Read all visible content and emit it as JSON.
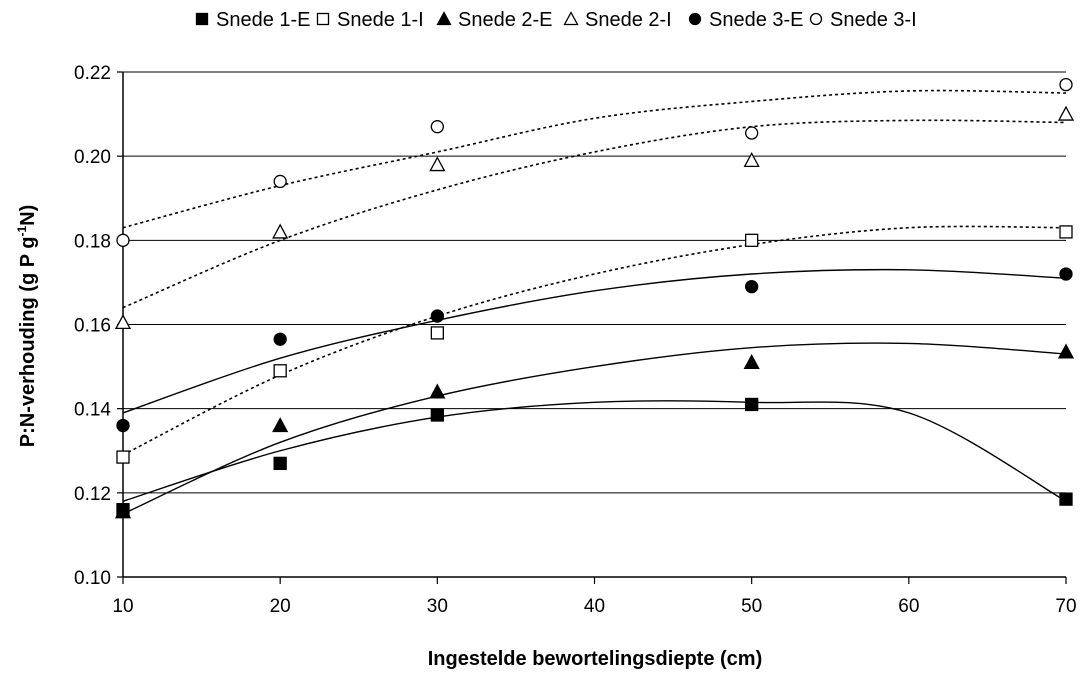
{
  "chart_data": {
    "type": "scatter",
    "title": "",
    "xlabel": "Ingestelde bewortelingsdiepte (cm)",
    "ylabel_parts": {
      "main": "P:N-verhouding (g P g",
      "sup": "-1",
      "end": "N)"
    },
    "xlim": [
      10,
      70
    ],
    "ylim": [
      0.1,
      0.22
    ],
    "x_ticks": [
      "10",
      "20",
      "30",
      "40",
      "50",
      "60",
      "70"
    ],
    "y_ticks": [
      "0.10",
      "0.12",
      "0.14",
      "0.16",
      "0.18",
      "0.20",
      "0.22"
    ],
    "grid": "horizontal",
    "legend_position": "top",
    "x": [
      10,
      20,
      30,
      50,
      70
    ],
    "series": [
      {
        "name": "Snede 1-E",
        "marker": "square-filled",
        "trend": "solid",
        "values": [
          0.116,
          0.127,
          0.1385,
          0.141,
          0.1185
        ],
        "trend_values": [
          0.118,
          0.13,
          0.138,
          0.1415,
          0.1415,
          0.139,
          0.118
        ]
      },
      {
        "name": "Snede 1-I",
        "marker": "square-open",
        "trend": "dotted",
        "values": [
          0.1285,
          0.149,
          0.158,
          0.18,
          0.182
        ],
        "trend_values": [
          0.129,
          0.148,
          0.162,
          0.172,
          0.179,
          0.183,
          0.183
        ]
      },
      {
        "name": "Snede 2-E",
        "marker": "triangle-filled",
        "trend": "solid",
        "values": [
          0.1155,
          0.136,
          0.144,
          0.151,
          0.1535
        ],
        "trend_values": [
          0.115,
          0.132,
          0.143,
          0.15,
          0.1545,
          0.1555,
          0.153
        ]
      },
      {
        "name": "Snede 2-I",
        "marker": "triangle-open",
        "trend": "dotted",
        "values": [
          0.1605,
          0.182,
          0.198,
          0.199,
          0.21
        ],
        "trend_values": [
          0.164,
          0.18,
          0.192,
          0.201,
          0.207,
          0.2085,
          0.208
        ]
      },
      {
        "name": "Snede 3-E",
        "marker": "circle-filled",
        "trend": "solid",
        "values": [
          0.136,
          0.1565,
          0.162,
          0.169,
          0.172
        ],
        "trend_values": [
          0.139,
          0.152,
          0.161,
          0.168,
          0.172,
          0.173,
          0.171
        ]
      },
      {
        "name": "Snede 3-I",
        "marker": "circle-open",
        "trend": "dotted",
        "values": [
          0.18,
          0.194,
          0.207,
          0.2055,
          0.217
        ],
        "trend_values": [
          0.183,
          0.193,
          0.201,
          0.209,
          0.213,
          0.2155,
          0.215
        ]
      }
    ],
    "trend_x": [
      10,
      20,
      30,
      40,
      50,
      60,
      70
    ]
  },
  "colors": {
    "marker": "#000000",
    "grid": "#000000",
    "trend": "#000000"
  }
}
